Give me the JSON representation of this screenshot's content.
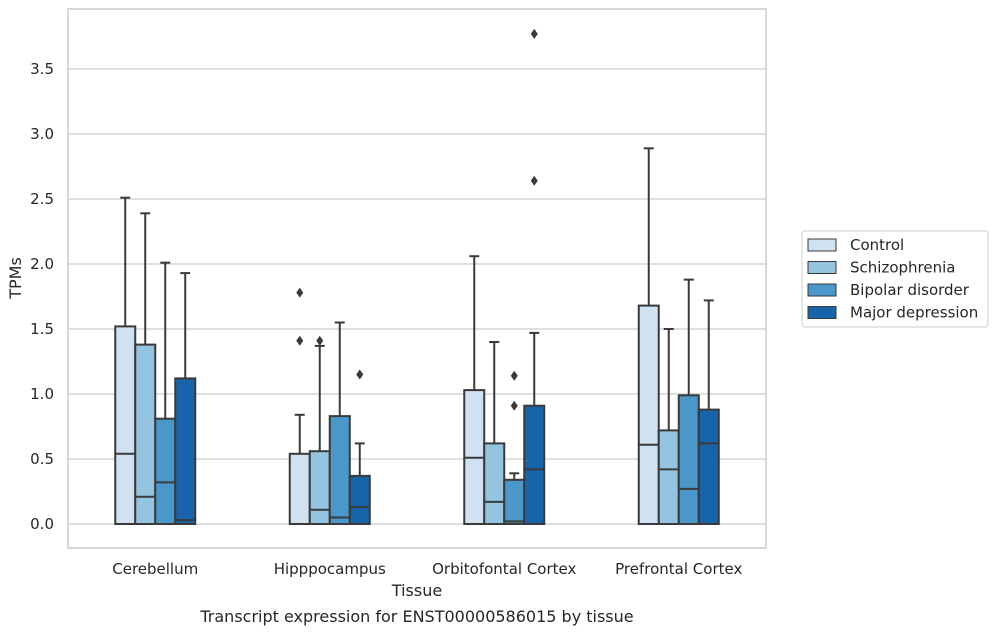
{
  "chart_data": {
    "type": "box",
    "title": "",
    "caption": "Transcript expression for ENST00000586015 by tissue",
    "xlabel": "Tissue",
    "ylabel": "TPMs",
    "ylim": [
      -0.18,
      3.95
    ],
    "yticks": [
      "0.0",
      "0.5",
      "1.0",
      "1.5",
      "2.0",
      "2.5",
      "3.0",
      "3.5"
    ],
    "grid": "horizontal",
    "legend_position": "right",
    "categories": [
      "Cerebellum",
      "Hipppocampus",
      "Orbitofontal Cortex",
      "Prefrontal Cortex"
    ],
    "series": [
      {
        "name": "Control",
        "color": "#d0e1f2",
        "boxes": [
          {
            "q1": 0.0,
            "median": 0.54,
            "q3": 1.52,
            "whisker_low": 0.0,
            "whisker_high": 2.51,
            "outliers": []
          },
          {
            "q1": 0.0,
            "median": 0.0,
            "q3": 0.54,
            "whisker_low": 0.0,
            "whisker_high": 0.84,
            "outliers": [
              1.41,
              1.78
            ]
          },
          {
            "q1": 0.0,
            "median": 0.51,
            "q3": 1.03,
            "whisker_low": 0.0,
            "whisker_high": 2.06,
            "outliers": []
          },
          {
            "q1": 0.0,
            "median": 0.61,
            "q3": 1.68,
            "whisker_low": 0.0,
            "whisker_high": 2.89,
            "outliers": []
          }
        ]
      },
      {
        "name": "Schizophrenia",
        "color": "#94c4df",
        "boxes": [
          {
            "q1": 0.0,
            "median": 0.21,
            "q3": 1.38,
            "whisker_low": 0.0,
            "whisker_high": 2.39,
            "outliers": []
          },
          {
            "q1": 0.0,
            "median": 0.11,
            "q3": 0.56,
            "whisker_low": 0.0,
            "whisker_high": 1.37,
            "outliers": [
              1.41
            ]
          },
          {
            "q1": 0.0,
            "median": 0.17,
            "q3": 0.62,
            "whisker_low": 0.0,
            "whisker_high": 1.4,
            "outliers": []
          },
          {
            "q1": 0.0,
            "median": 0.42,
            "q3": 0.72,
            "whisker_low": 0.0,
            "whisker_high": 1.5,
            "outliers": []
          }
        ]
      },
      {
        "name": "Bipolar disorder",
        "color": "#4a98c9",
        "boxes": [
          {
            "q1": 0.0,
            "median": 0.32,
            "q3": 0.81,
            "whisker_low": 0.0,
            "whisker_high": 2.01,
            "outliers": []
          },
          {
            "q1": 0.0,
            "median": 0.05,
            "q3": 0.83,
            "whisker_low": 0.0,
            "whisker_high": 1.55,
            "outliers": []
          },
          {
            "q1": 0.0,
            "median": 0.02,
            "q3": 0.34,
            "whisker_low": 0.0,
            "whisker_high": 0.39,
            "outliers": [
              0.91,
              1.14
            ]
          },
          {
            "q1": 0.0,
            "median": 0.27,
            "q3": 0.99,
            "whisker_low": 0.0,
            "whisker_high": 1.88,
            "outliers": []
          }
        ]
      },
      {
        "name": "Major depression",
        "color": "#1764ab",
        "boxes": [
          {
            "q1": 0.0,
            "median": 0.03,
            "q3": 1.12,
            "whisker_low": 0.0,
            "whisker_high": 1.93,
            "outliers": []
          },
          {
            "q1": 0.0,
            "median": 0.13,
            "q3": 0.37,
            "whisker_low": 0.0,
            "whisker_high": 0.62,
            "outliers": [
              1.15
            ]
          },
          {
            "q1": 0.0,
            "median": 0.42,
            "q3": 0.91,
            "whisker_low": 0.0,
            "whisker_high": 1.47,
            "outliers": [
              2.64,
              3.77
            ]
          },
          {
            "q1": 0.0,
            "median": 0.62,
            "q3": 0.88,
            "whisker_low": 0.0,
            "whisker_high": 1.72,
            "outliers": []
          }
        ]
      }
    ]
  }
}
